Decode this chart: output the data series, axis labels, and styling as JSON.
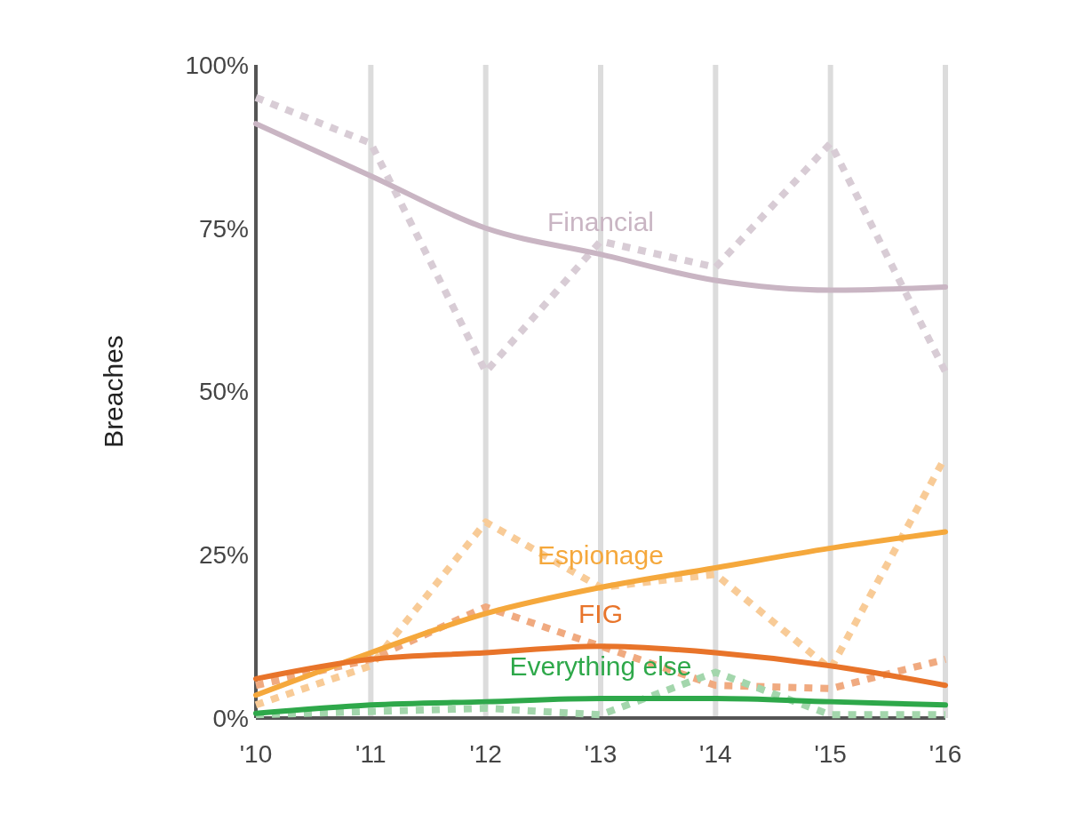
{
  "chart_data": {
    "type": "line",
    "ylabel": "Breaches",
    "x": [
      2010,
      2011,
      2012,
      2013,
      2014,
      2015,
      2016
    ],
    "xlim": [
      2010,
      2016
    ],
    "xticks": [
      {
        "value": 2010,
        "label": "'10"
      },
      {
        "value": 2011,
        "label": "'11"
      },
      {
        "value": 2012,
        "label": "'12"
      },
      {
        "value": 2013,
        "label": "'13"
      },
      {
        "value": 2014,
        "label": "'14"
      },
      {
        "value": 2015,
        "label": "'15"
      },
      {
        "value": 2016,
        "label": "'16"
      }
    ],
    "ylim": [
      0,
      100
    ],
    "yticks": [
      {
        "value": 0,
        "label": "0%"
      },
      {
        "value": 25,
        "label": "25%"
      },
      {
        "value": 50,
        "label": "50%"
      },
      {
        "value": 75,
        "label": "75%"
      },
      {
        "value": 100,
        "label": "100%"
      }
    ],
    "grid": "x",
    "marker": "none",
    "series": [
      {
        "color": "#d8ccd5",
        "line_style": "dotted",
        "values": [
          95,
          88,
          53,
          73,
          69,
          88,
          53
        ]
      },
      {
        "color": "#f8cb97",
        "line_style": "dotted",
        "values": [
          2,
          8,
          30,
          20,
          22,
          7.5,
          40
        ]
      },
      {
        "color": "#f0aa80",
        "line_style": "dotted",
        "values": [
          5,
          9,
          17,
          11,
          5,
          4.5,
          9
        ]
      },
      {
        "color": "#a3d6ac",
        "line_style": "dotted",
        "values": [
          0.5,
          1,
          1.5,
          0.5,
          7,
          0.5,
          0.5
        ]
      },
      {
        "name": "Financial",
        "color": "#c9b5c3",
        "line_style": "solid",
        "values": [
          91,
          83,
          75,
          71,
          67,
          65.5,
          66
        ]
      },
      {
        "name": "Espionage",
        "color": "#f5a83c",
        "line_style": "solid",
        "values": [
          3.5,
          10,
          16,
          20,
          23,
          26,
          28.5
        ]
      },
      {
        "name": "FIG",
        "color": "#e8742a",
        "line_style": "solid",
        "values": [
          6,
          9,
          10,
          11,
          10,
          8,
          5
        ]
      },
      {
        "name": "Everything else",
        "color": "#2ea84a",
        "line_style": "solid",
        "values": [
          0.7,
          2,
          2.5,
          3,
          3,
          2.5,
          2
        ]
      }
    ]
  }
}
